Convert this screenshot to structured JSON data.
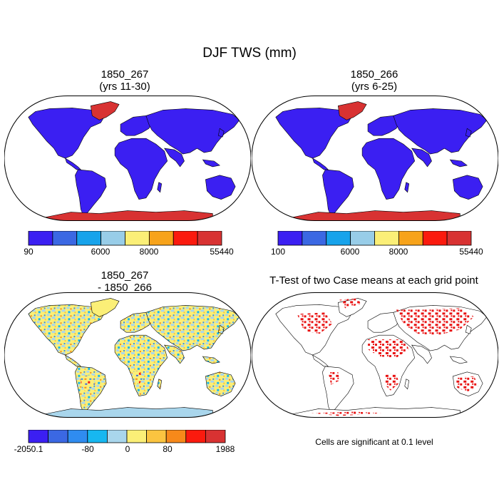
{
  "title": "DJF TWS (mm)",
  "panels": [
    {
      "id": "case1",
      "title_line1": "1850_267",
      "title_line2": "(yrs 11-30)"
    },
    {
      "id": "case2",
      "title_line1": "1850_266",
      "title_line2": "(yrs 6-25)"
    },
    {
      "id": "diff",
      "title_line1": "1850_267",
      "title_line2": "- 1850_266"
    },
    {
      "id": "ttest",
      "title_line1": "T-Test of two Case means at each grid point",
      "title_line2": ""
    }
  ],
  "colorbars": [
    {
      "id": "case1",
      "colors": [
        "#3b1ff2",
        "#3b68e3",
        "#17a3eb",
        "#98cde8",
        "#fbef77",
        "#f7a31a",
        "#fb1a0e",
        "#d83232"
      ],
      "labels": [
        "90",
        "6000",
        "8000",
        "55440"
      ]
    },
    {
      "id": "case2",
      "colors": [
        "#3b1ff2",
        "#3b68e3",
        "#17a3eb",
        "#98cde8",
        "#fbef77",
        "#f7a31a",
        "#fb1a0e",
        "#d83232"
      ],
      "labels": [
        "100",
        "6000",
        "8000",
        "55440"
      ]
    },
    {
      "id": "diff",
      "colors": [
        "#3b1ff2",
        "#3b68e3",
        "#2f8cf0",
        "#17b7f0",
        "#a9d6ec",
        "#fbef77",
        "#fbc440",
        "#f7891a",
        "#fb1a0e",
        "#d83232"
      ],
      "labels": [
        "-2050.1",
        "-80",
        "0",
        "80",
        "1988"
      ]
    }
  ],
  "ttest_note": "Cells are significant at 0.1 level",
  "colors": {
    "land_low": "#3b1ff2",
    "icesheet": "#d83232",
    "significant": "#e81010",
    "diff_yellow": "#fbef77",
    "diff_lightblue": "#a9d6ec"
  }
}
